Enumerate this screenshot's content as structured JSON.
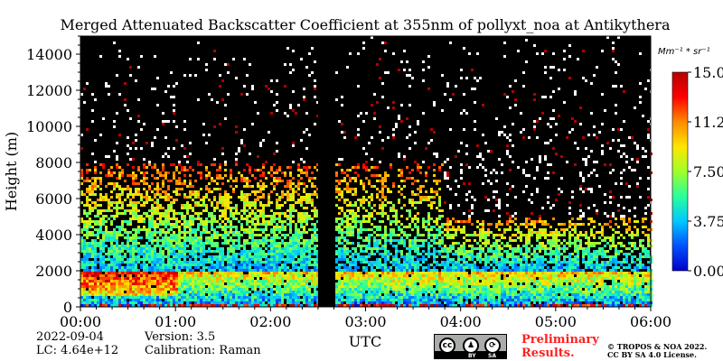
{
  "chart_data": {
    "type": "heatmap",
    "title": "Merged Attenuated Backscatter Coefficient at 355nm of pollyxt_noa at Antikythera",
    "xlabel": "UTC",
    "ylabel": "Height (m)",
    "x_ticks": [
      "00:00",
      "01:00",
      "02:00",
      "03:00",
      "04:00",
      "05:00",
      "06:00"
    ],
    "x_range_hours": [
      0,
      6
    ],
    "y_ticks": [
      0,
      2000,
      4000,
      6000,
      8000,
      10000,
      12000,
      14000
    ],
    "ylim": [
      0,
      15000
    ],
    "colorbar": {
      "unit": "Mm⁻¹ * sr⁻¹",
      "ticks": [
        "0.00",
        "3.75",
        "7.50",
        "11.25",
        "15.00"
      ],
      "range": [
        0,
        15
      ],
      "colors": [
        "#0000c8",
        "#0050ff",
        "#00c8ff",
        "#2aff9c",
        "#a0ff2a",
        "#ffe600",
        "#ff8a00",
        "#ff0000",
        "#b40000"
      ]
    },
    "data_gap_hours": [
      2.5,
      2.68
    ],
    "layers": [
      {
        "name": "boundary layer",
        "from_hour": 0,
        "to_hour": 6,
        "top_m": 2000,
        "max_value": 15
      },
      {
        "name": "elevated aerosol layer",
        "from_hour": 0,
        "to_hour": 3.8,
        "bottom_m": 2000,
        "top_m": 8000,
        "max_value": 12
      },
      {
        "name": "elevated aerosol layer",
        "from_hour": 3.8,
        "to_hour": 6,
        "bottom_m": 2000,
        "top_m": 5000,
        "max_value": 11
      }
    ]
  },
  "footer": {
    "date": "2022-09-04",
    "lc": "LC: 4.64e+12",
    "version": "Version: 3.5",
    "calibration": "Calibration: Raman",
    "preliminary": [
      "Preliminary",
      "Results."
    ],
    "copyright": [
      "© TROPOS & NOA 2022.",
      "CC BY SA 4.0 License."
    ],
    "license_badge": {
      "cc": "cc",
      "by": "BY",
      "sa": "SA"
    }
  }
}
